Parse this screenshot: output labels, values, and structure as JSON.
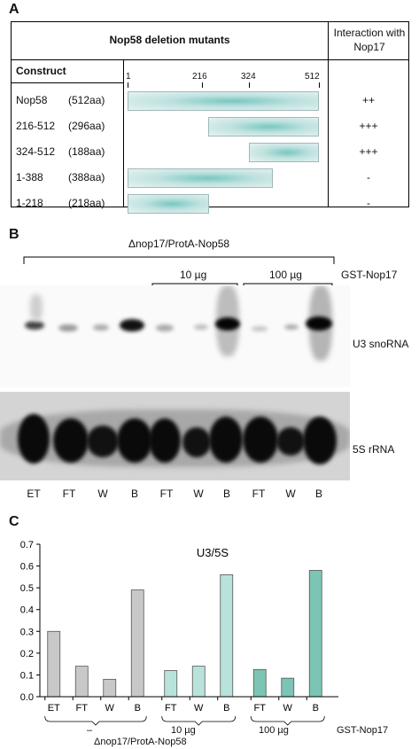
{
  "panel_a": {
    "letter": "A",
    "header_title": "Nop58 deletion mutants",
    "header_interaction": "Interaction with Nop17",
    "construct_label": "Construct",
    "scale_ticks": [
      "1",
      "216",
      "324",
      "512"
    ],
    "rows": [
      {
        "name": "Nop58",
        "size": "(512aa)",
        "start": 1,
        "end": 512,
        "interaction": "++"
      },
      {
        "name": "216-512",
        "size": "(296aa)",
        "start": 216,
        "end": 512,
        "interaction": "+++"
      },
      {
        "name": "324-512",
        "size": "(188aa)",
        "start": 324,
        "end": 512,
        "interaction": "+++"
      },
      {
        "name": "1-388",
        "size": "(388aa)",
        "start": 1,
        "end": 388,
        "interaction": "-"
      },
      {
        "name": "1-218",
        "size": "(218aa)",
        "start": 1,
        "end": 218,
        "interaction": "-"
      }
    ]
  },
  "panel_b": {
    "letter": "B",
    "strain_label": "Δnop17/ProtA-Nop58",
    "dose_10": "10 µg",
    "dose_100": "100 µg",
    "gst_label": "GST-Nop17",
    "u3_label": "U3 snoRNA",
    "rrna_label": "5S rRNA",
    "lanes": [
      "ET",
      "FT",
      "W",
      "B",
      "FT",
      "W",
      "B",
      "FT",
      "W",
      "B"
    ]
  },
  "panel_c": {
    "letter": "C",
    "strain_label": "Δnop17/ProtA-Nop58",
    "dash_label": "–",
    "dose_10": "10 µg",
    "dose_100": "100 µg",
    "gst_label": "GST-Nop17"
  },
  "chart_data": {
    "type": "bar",
    "title": "U3/5S",
    "categories": [
      "ET",
      "FT",
      "W",
      "B",
      "FT",
      "W",
      "B",
      "FT",
      "W",
      "B"
    ],
    "values": [
      0.3,
      0.14,
      0.08,
      0.49,
      0.12,
      0.14,
      0.56,
      0.125,
      0.085,
      0.58
    ],
    "groups": [
      "–",
      "–",
      "–",
      "–",
      "10 µg",
      "10 µg",
      "10 µg",
      "100 µg",
      "100 µg",
      "100 µg"
    ],
    "colors": [
      "#c8c8c8",
      "#c8c8c8",
      "#c8c8c8",
      "#c8c8c8",
      "#b8e3db",
      "#b8e3db",
      "#b8e3db",
      "#7cc4b3",
      "#7cc4b3",
      "#7cc4b3"
    ],
    "y_ticks": [
      "0.0",
      "0.1",
      "0.2",
      "0.3",
      "0.4",
      "0.5",
      "0.6",
      "0.7"
    ],
    "ylim": [
      0,
      0.7
    ],
    "grid": false
  }
}
